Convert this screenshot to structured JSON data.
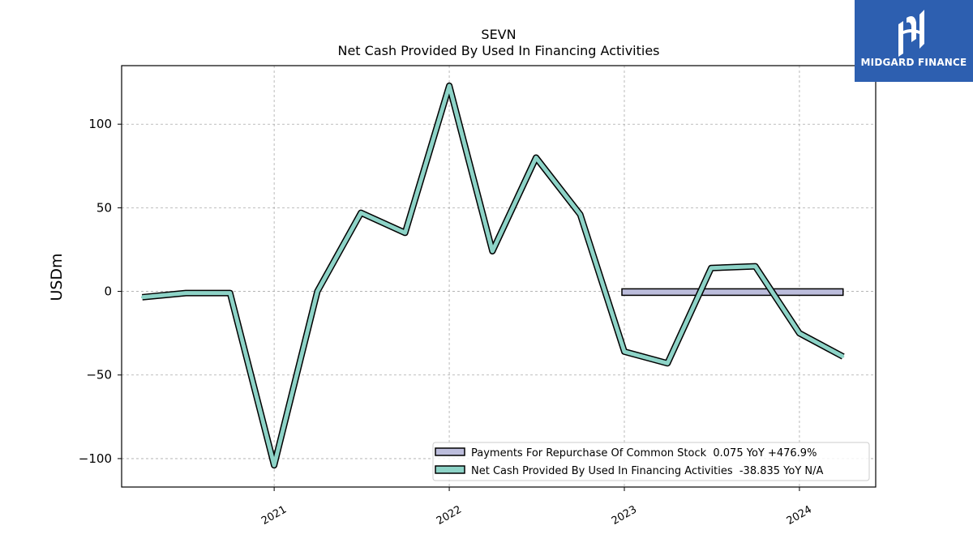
{
  "logo": {
    "text": "MIDGARD FINANCE",
    "background": "#2d5fb0"
  },
  "chart_data": {
    "type": "line",
    "title": "SEVN",
    "subtitle": "Net Cash Provided By Used In Financing Activities",
    "ylabel": "USDm",
    "xlabel": "",
    "ylim": [
      -117,
      135
    ],
    "xlim": [
      "2020-02-18",
      "2024-06-08"
    ],
    "yticks": [
      100,
      50,
      0,
      -50,
      -100
    ],
    "ytick_labels": [
      "100",
      "50",
      "0",
      "−50",
      "−100"
    ],
    "xticks": [
      "2021-01-01",
      "2022-01-01",
      "2023-01-01",
      "2024-01-01"
    ],
    "xtick_labels": [
      "2021",
      "2022",
      "2023",
      "2024"
    ],
    "grid": true,
    "legend_position": "bottom-right",
    "series": [
      {
        "name": "Payments For Repurchase Of Common Stock  0.075 YoY +476.9%",
        "color": "#bcbddc",
        "style": "bar-band",
        "x": [
          "2023-01-01",
          "2024-04-01"
        ],
        "values": [
          0.0,
          0.075
        ]
      },
      {
        "name": "Net Cash Provided By Used In Financing Activities  -38.835 YoY N/A",
        "color": "#8dd3c7",
        "style": "line",
        "x": [
          "2020-04-01",
          "2020-07-01",
          "2020-10-01",
          "2021-01-01",
          "2021-04-01",
          "2021-07-01",
          "2021-10-01",
          "2022-01-01",
          "2022-04-01",
          "2022-07-01",
          "2022-10-01",
          "2023-01-01",
          "2023-04-01",
          "2023-07-01",
          "2023-10-01",
          "2024-01-01",
          "2024-04-01"
        ],
        "values": [
          -3.5,
          -1.0,
          -1.0,
          -104,
          0,
          47,
          35,
          123,
          24,
          80,
          46,
          -36,
          -43,
          14,
          15,
          -25,
          -39
        ]
      }
    ]
  }
}
